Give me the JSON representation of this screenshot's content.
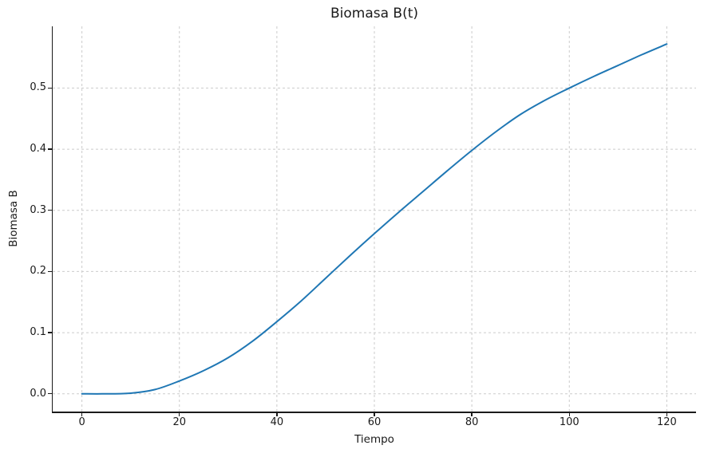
{
  "chart_data": {
    "type": "line",
    "title": "Biomasa B(t)",
    "xlabel": "Tiempo",
    "ylabel": "Biomasa B",
    "x": [
      0,
      5,
      10,
      15,
      20,
      25,
      30,
      35,
      40,
      45,
      50,
      55,
      60,
      65,
      70,
      75,
      80,
      85,
      90,
      95,
      100,
      105,
      110,
      115,
      120
    ],
    "series": [
      {
        "name": "Biomasa B(t)",
        "color": "#1f77b4",
        "values": [
          0.0,
          0.0,
          0.001,
          0.007,
          0.021,
          0.038,
          0.059,
          0.086,
          0.118,
          0.152,
          0.189,
          0.226,
          0.262,
          0.297,
          0.331,
          0.365,
          0.398,
          0.429,
          0.457,
          0.48,
          0.5,
          0.519,
          0.537,
          0.555,
          0.572
        ]
      }
    ],
    "x_ticks": [
      0,
      20,
      40,
      60,
      80,
      100,
      120
    ],
    "y_ticks": [
      0.0,
      0.1,
      0.2,
      0.3,
      0.4,
      0.5
    ],
    "xlim": [
      -6,
      126
    ],
    "ylim": [
      -0.029,
      0.601
    ],
    "grid": "dashed",
    "grid_color": "#cbcbcb",
    "spine_color": "#1a1a1a",
    "background": "#ffffff",
    "legend": "none"
  }
}
